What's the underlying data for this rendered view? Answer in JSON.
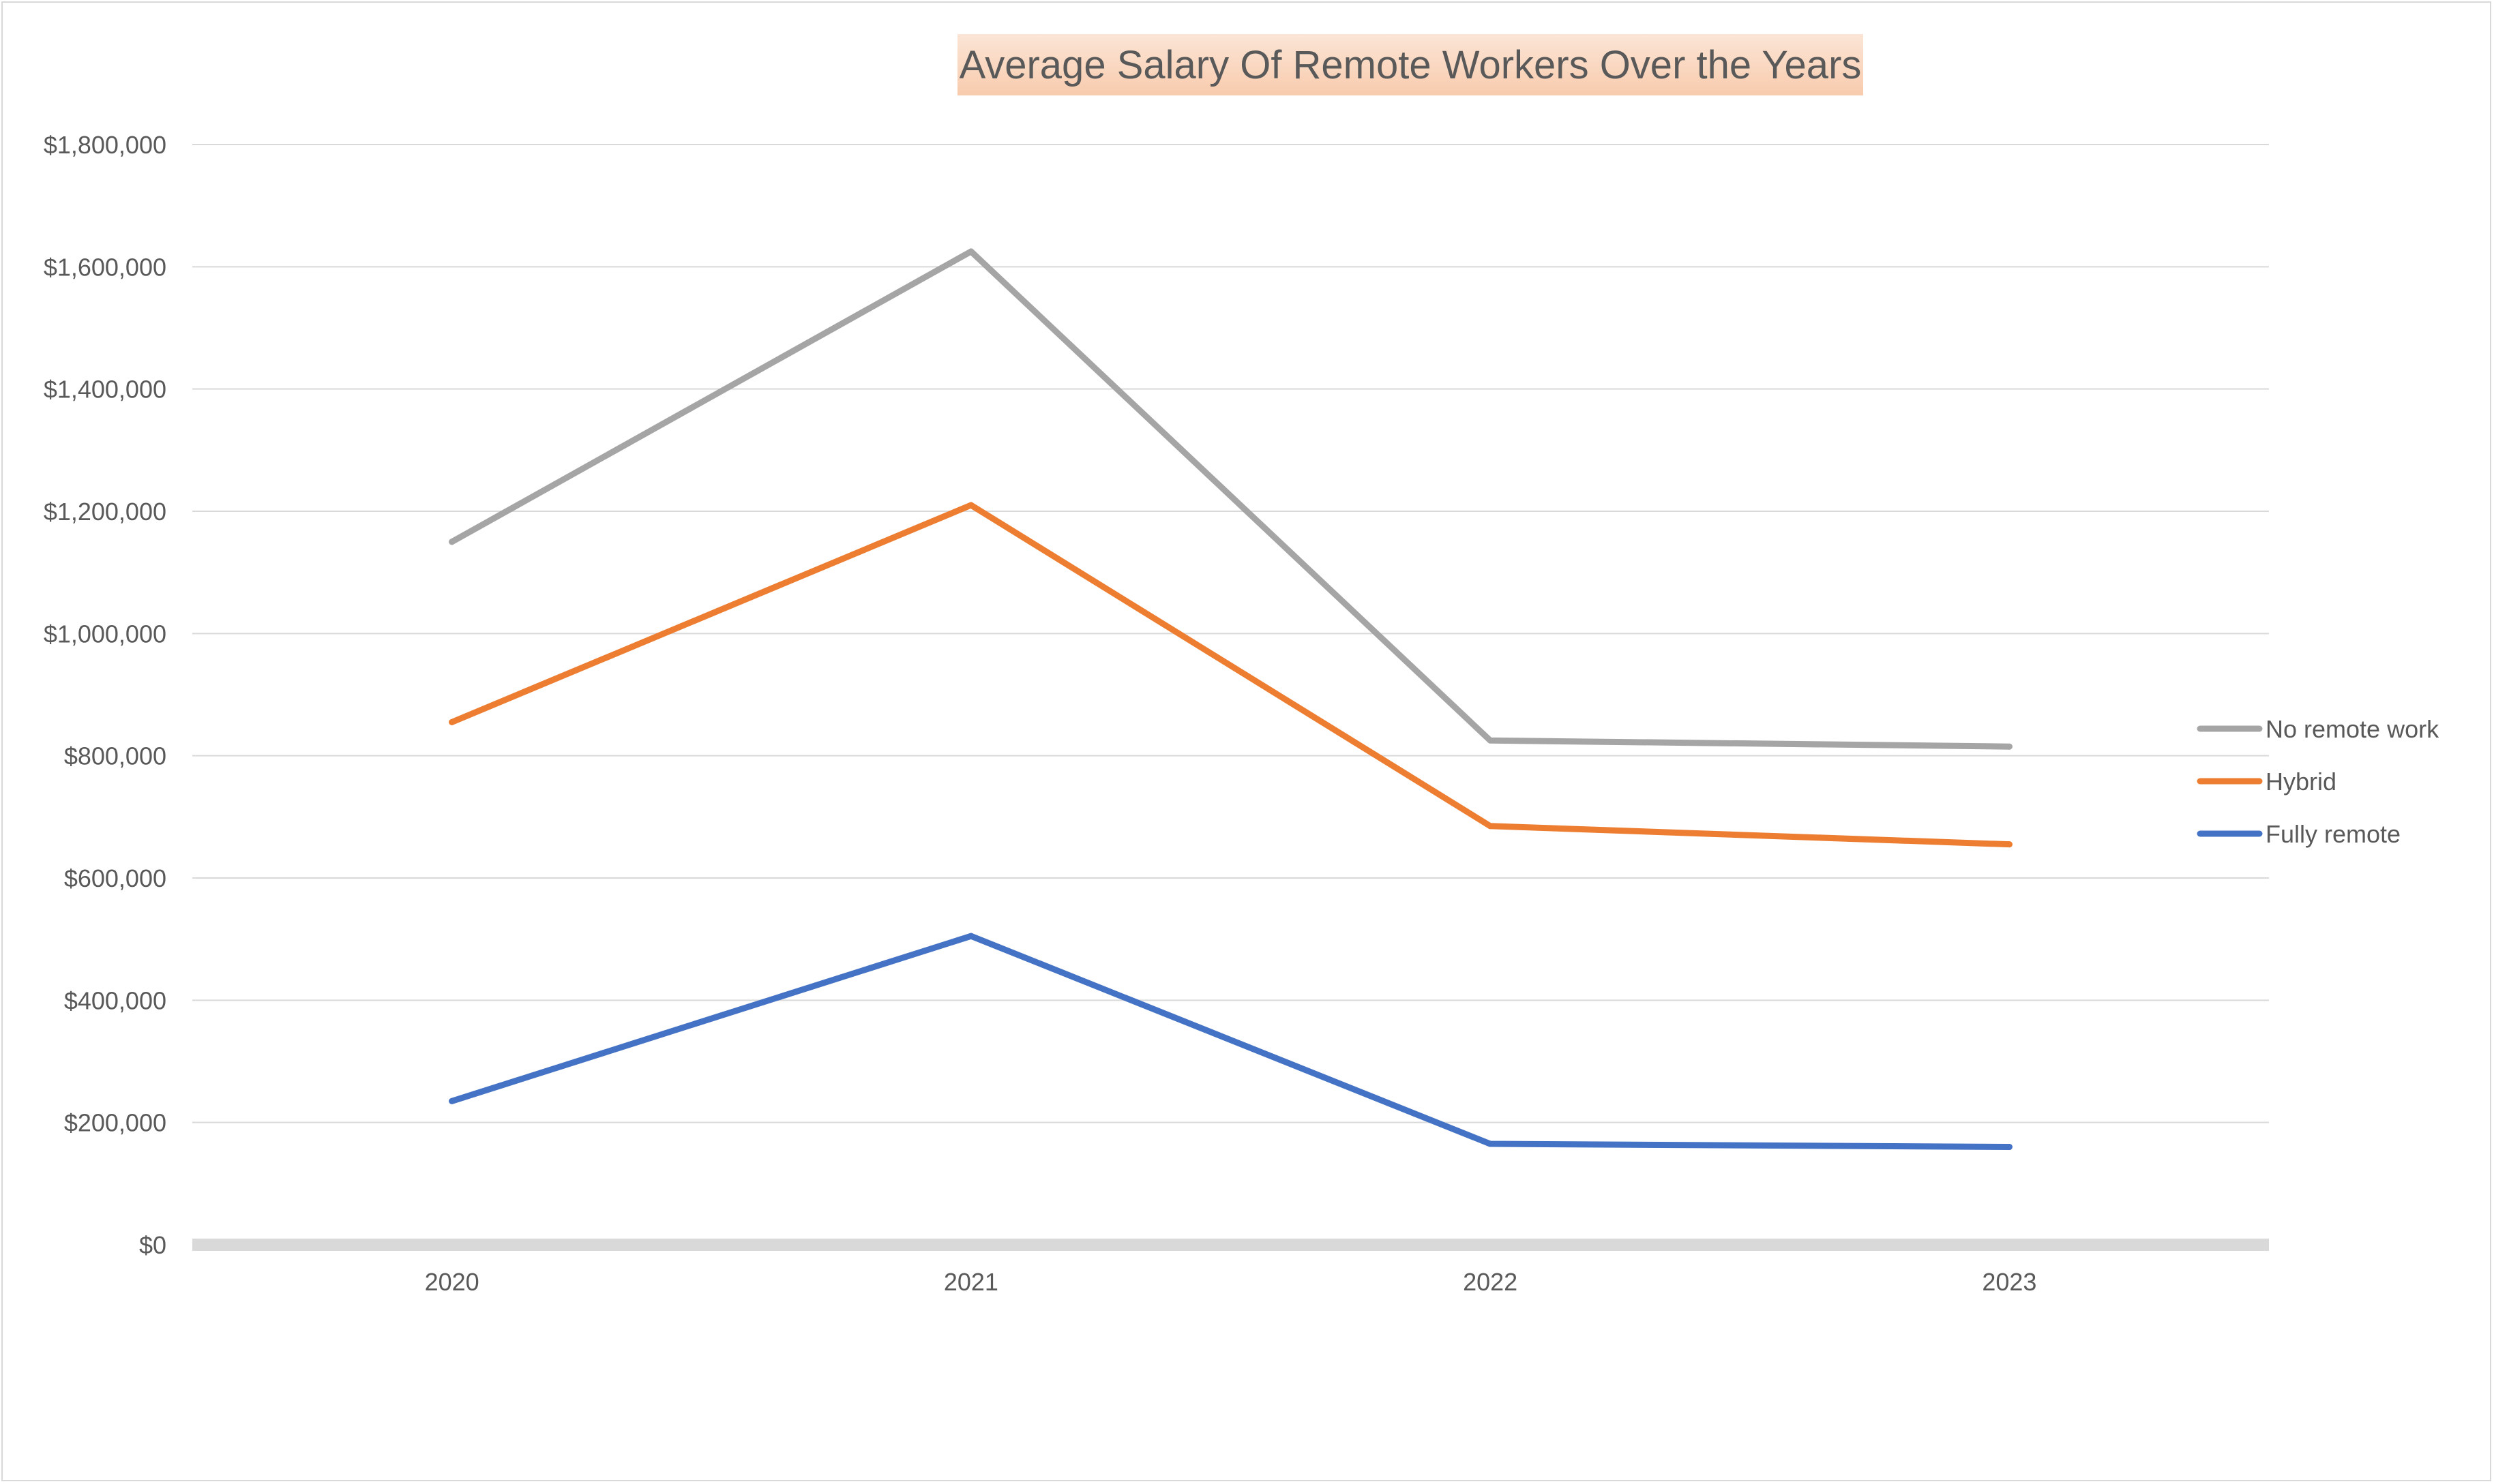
{
  "chart_data": {
    "type": "line",
    "title": "Average Salary Of Remote Workers Over the Years",
    "xlabel": "",
    "ylabel": "",
    "categories": [
      "2020",
      "2021",
      "2022",
      "2023"
    ],
    "ylim": [
      0,
      1800000
    ],
    "yticks": [
      0,
      200000,
      400000,
      600000,
      800000,
      1000000,
      1200000,
      1400000,
      1600000,
      1800000
    ],
    "ytick_labels": [
      "$0",
      "$200,000",
      "$400,000",
      "$600,000",
      "$800,000",
      "$1,000,000",
      "$1,200,000",
      "$1,400,000",
      "$1,600,000",
      "$1,800,000"
    ],
    "grid": true,
    "legend_position": "right",
    "series": [
      {
        "name": "No remote work",
        "color": "#a5a5a5",
        "values": [
          1150000,
          1625000,
          825000,
          815000
        ]
      },
      {
        "name": "Hybrid",
        "color": "#ed7d31",
        "values": [
          855000,
          1210000,
          685000,
          655000
        ]
      },
      {
        "name": "Fully remote",
        "color": "#4472c4",
        "values": [
          235000,
          505000,
          165000,
          160000
        ]
      }
    ]
  }
}
